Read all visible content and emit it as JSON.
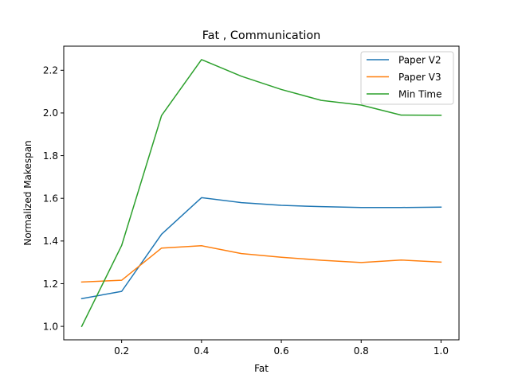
{
  "chart_data": {
    "type": "line",
    "title": "Fat , Communication",
    "xlabel": "Fat",
    "ylabel": "Normalized Makespan",
    "xlim": [
      0.055,
      1.045
    ],
    "ylim": [
      0.937,
      2.313
    ],
    "xticks": [
      0.2,
      0.4,
      0.6,
      0.8,
      1.0
    ],
    "xtick_labels": [
      "0.2",
      "0.4",
      "0.6",
      "0.8",
      "1.0"
    ],
    "yticks": [
      1.0,
      1.2,
      1.4,
      1.6,
      1.8,
      2.0,
      2.2
    ],
    "ytick_labels": [
      "1.0",
      "1.2",
      "1.4",
      "1.6",
      "1.8",
      "2.0",
      "2.2"
    ],
    "grid": false,
    "legend_position": "upper-right",
    "x": [
      0.1,
      0.2,
      0.3,
      0.4,
      0.5,
      0.6,
      0.7,
      0.8,
      0.9,
      1.0
    ],
    "series": [
      {
        "name": "Paper V2",
        "color": "#1f77b4",
        "values": [
          1.13,
          1.164,
          1.432,
          1.603,
          1.58,
          1.567,
          1.561,
          1.557,
          1.557,
          1.559
        ]
      },
      {
        "name": "Paper V3",
        "color": "#ff7f0e",
        "values": [
          1.208,
          1.216,
          1.367,
          1.378,
          1.341,
          1.324,
          1.31,
          1.299,
          1.311,
          1.301
        ]
      },
      {
        "name": "Min Time",
        "color": "#2ca02c",
        "values": [
          1.0,
          1.379,
          1.988,
          2.25,
          2.172,
          2.11,
          2.059,
          2.037,
          1.99,
          1.989
        ]
      }
    ]
  }
}
